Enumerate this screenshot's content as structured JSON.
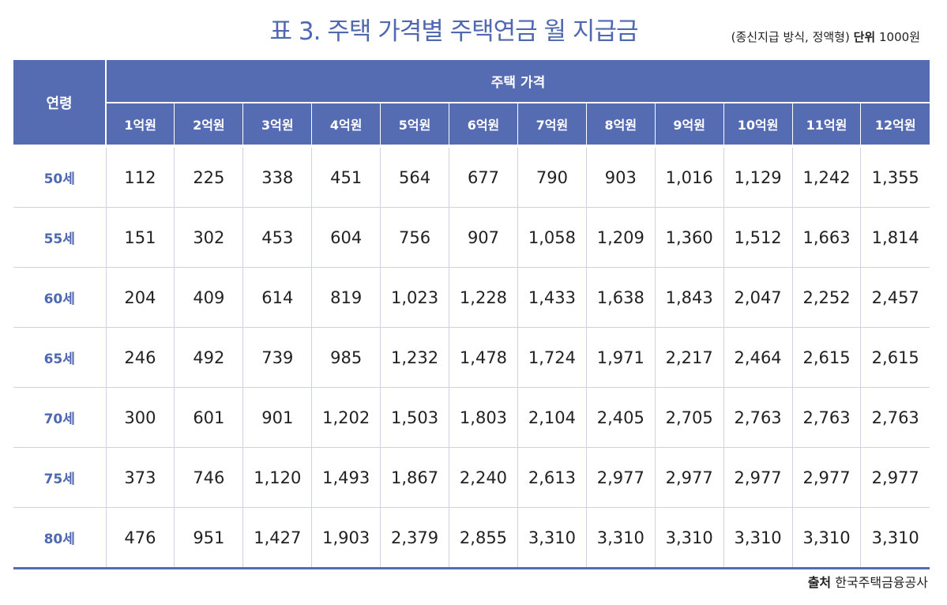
{
  "title": "표 3. 주택 가격별 주택연금 월 지급금",
  "unit_note": {
    "method": "(종신지급 방식, 정액형)",
    "unit_label": "단위",
    "unit_value": "1000원"
  },
  "table": {
    "age_header": "연령",
    "group_header": "주택 가격",
    "price_headers": [
      "1억원",
      "2억원",
      "3억원",
      "4억원",
      "5억원",
      "6억원",
      "7억원",
      "8억원",
      "9억원",
      "10억원",
      "11억원",
      "12억원"
    ],
    "rows": [
      {
        "age": "50세",
        "values": [
          "112",
          "225",
          "338",
          "451",
          "564",
          "677",
          "790",
          "903",
          "1,016",
          "1,129",
          "1,242",
          "1,355"
        ]
      },
      {
        "age": "55세",
        "values": [
          "151",
          "302",
          "453",
          "604",
          "756",
          "907",
          "1,058",
          "1,209",
          "1,360",
          "1,512",
          "1,663",
          "1,814"
        ]
      },
      {
        "age": "60세",
        "values": [
          "204",
          "409",
          "614",
          "819",
          "1,023",
          "1,228",
          "1,433",
          "1,638",
          "1,843",
          "2,047",
          "2,252",
          "2,457"
        ]
      },
      {
        "age": "65세",
        "values": [
          "246",
          "492",
          "739",
          "985",
          "1,232",
          "1,478",
          "1,724",
          "1,971",
          "2,217",
          "2,464",
          "2,615",
          "2,615"
        ]
      },
      {
        "age": "70세",
        "values": [
          "300",
          "601",
          "901",
          "1,202",
          "1,503",
          "1,803",
          "2,104",
          "2,405",
          "2,705",
          "2,763",
          "2,763",
          "2,763"
        ]
      },
      {
        "age": "75세",
        "values": [
          "373",
          "746",
          "1,120",
          "1,493",
          "1,867",
          "2,240",
          "2,613",
          "2,977",
          "2,977",
          "2,977",
          "2,977",
          "2,977"
        ]
      },
      {
        "age": "80세",
        "values": [
          "476",
          "951",
          "1,427",
          "1,903",
          "2,379",
          "2,855",
          "3,310",
          "3,310",
          "3,310",
          "3,310",
          "3,310",
          "3,310"
        ]
      }
    ]
  },
  "source": {
    "label": "출처",
    "value": "한국주택금융공사"
  },
  "colors": {
    "accent": "#566cb2",
    "title": "#4f68b0",
    "grid": "#cdd3e6"
  }
}
